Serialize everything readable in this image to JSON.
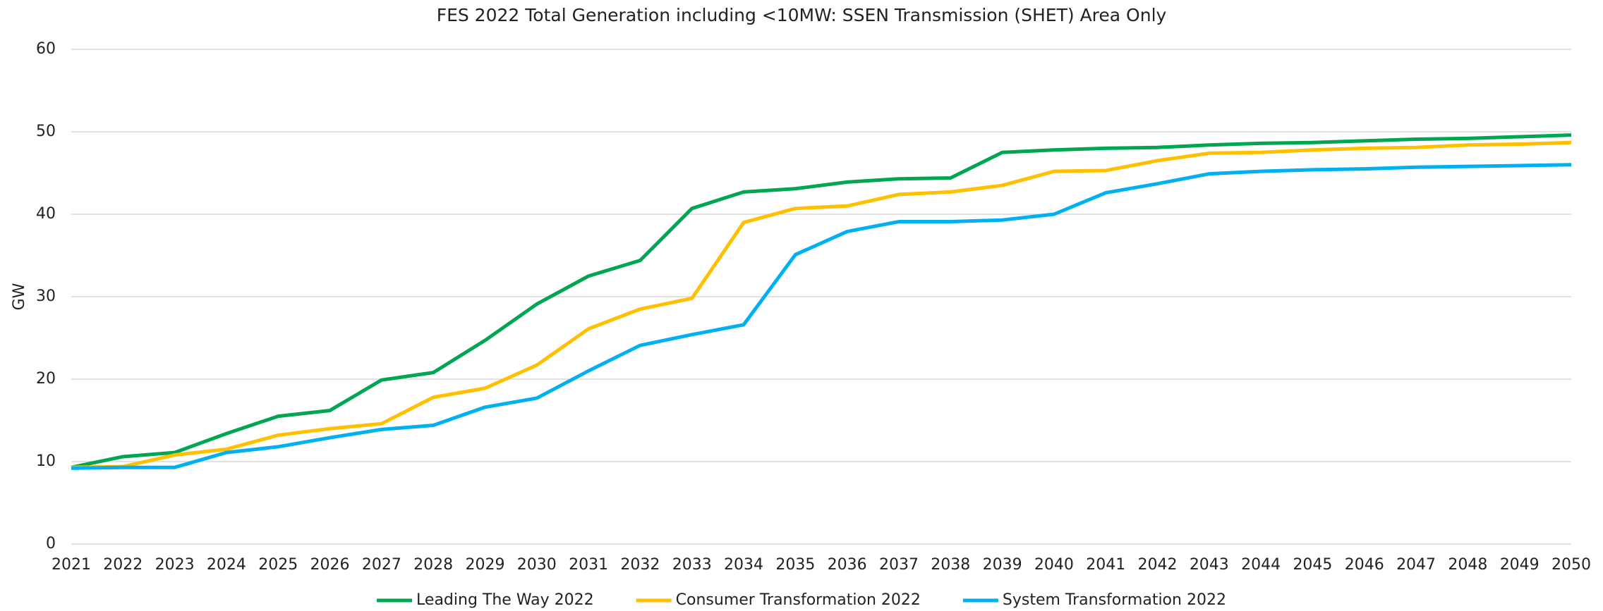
{
  "chart_data": {
    "type": "line",
    "title": "FES 2022 Total Generation including <10MW:  SSEN Transmission (SHET) Area Only",
    "y_label": "GW",
    "x": [
      2021,
      2022,
      2023,
      2024,
      2025,
      2026,
      2027,
      2028,
      2029,
      2030,
      2031,
      2032,
      2033,
      2034,
      2035,
      2036,
      2037,
      2038,
      2039,
      2040,
      2041,
      2042,
      2043,
      2044,
      2045,
      2046,
      2047,
      2048,
      2049,
      2050
    ],
    "xlim": [
      2021,
      2050
    ],
    "xticks": [
      2021,
      2022,
      2023,
      2024,
      2025,
      2026,
      2027,
      2028,
      2029,
      2030,
      2031,
      2032,
      2033,
      2034,
      2035,
      2036,
      2037,
      2038,
      2039,
      2040,
      2041,
      2042,
      2043,
      2044,
      2045,
      2046,
      2047,
      2048,
      2049,
      2050
    ],
    "ylim": [
      0,
      60
    ],
    "yticks": [
      0,
      10,
      20,
      30,
      40,
      50,
      60
    ],
    "grid": true,
    "legend": "bottom",
    "series": [
      {
        "name": "Leading The Way 2022",
        "color": "#00a651",
        "values": [
          9.3,
          10.6,
          11.1,
          13.4,
          15.5,
          16.2,
          19.9,
          20.8,
          24.7,
          29.1,
          32.5,
          34.4,
          40.7,
          42.7,
          43.1,
          43.9,
          44.3,
          44.4,
          47.5,
          47.8,
          48.0,
          48.1,
          48.4,
          48.6,
          48.7,
          48.9,
          49.1,
          49.2,
          49.4,
          49.6
        ]
      },
      {
        "name": "Consumer Transformation 2022",
        "color": "#ffc000",
        "values": [
          9.3,
          9.4,
          10.8,
          11.5,
          13.2,
          14.0,
          14.6,
          17.8,
          18.9,
          21.7,
          26.1,
          28.5,
          29.8,
          39.0,
          40.7,
          41.0,
          42.4,
          42.7,
          43.5,
          45.2,
          45.3,
          46.5,
          47.4,
          47.5,
          47.8,
          48.0,
          48.1,
          48.4,
          48.5,
          48.7
        ]
      },
      {
        "name": "System Transformation 2022",
        "color": "#00b0f0",
        "values": [
          9.2,
          9.3,
          9.3,
          11.1,
          11.8,
          12.9,
          13.9,
          14.4,
          16.6,
          17.7,
          21.0,
          24.1,
          25.4,
          26.6,
          35.1,
          37.9,
          39.1,
          39.1,
          39.3,
          40.0,
          42.6,
          43.7,
          44.9,
          45.2,
          45.4,
          45.5,
          45.7,
          45.8,
          45.9,
          46.0
        ]
      }
    ]
  }
}
